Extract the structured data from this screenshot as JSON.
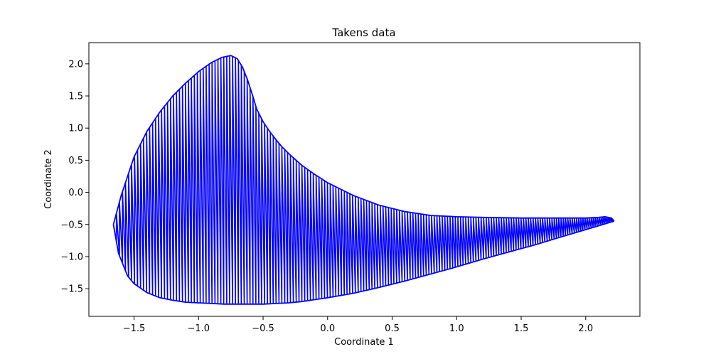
{
  "chart_data": {
    "type": "line",
    "title": "Takens data",
    "xlabel": "Coordinate 1",
    "ylabel": "Coordinate 2",
    "xlim": [
      -1.85,
      2.42
    ],
    "ylim": [
      -1.93,
      2.33
    ],
    "xticks": [
      -1.5,
      -1.0,
      -0.5,
      0.0,
      0.5,
      1.0,
      1.5,
      2.0
    ],
    "xtick_labels": [
      "−1.5",
      "−1.0",
      "−0.5",
      "0.0",
      "0.5",
      "1.0",
      "1.5",
      "2.0"
    ],
    "yticks": [
      -1.5,
      -1.0,
      -0.5,
      0.0,
      0.5,
      1.0,
      1.5,
      2.0
    ],
    "ytick_labels": [
      "−1.5",
      "−1.0",
      "−0.5",
      "0.0",
      "0.5",
      "1.0",
      "1.5",
      "2.0"
    ],
    "grid": false,
    "series": [
      {
        "color": "#0000ff",
        "upper_envelope": {
          "x": [
            -1.66,
            -1.6,
            -1.5,
            -1.4,
            -1.3,
            -1.2,
            -1.1,
            -1.0,
            -0.9,
            -0.82,
            -0.75,
            -0.7,
            -0.66,
            -0.62,
            -0.58,
            -0.55,
            -0.5,
            -0.45,
            -0.4,
            -0.35,
            -0.3,
            -0.2,
            -0.1,
            0.0,
            0.2,
            0.4,
            0.6,
            0.8,
            1.0,
            1.2,
            1.5,
            1.8,
            2.0,
            2.1,
            2.15,
            2.2,
            2.22
          ],
          "y": [
            -0.5,
            -0.05,
            0.55,
            0.95,
            1.25,
            1.5,
            1.7,
            1.88,
            2.02,
            2.1,
            2.13,
            2.08,
            1.95,
            1.75,
            1.5,
            1.3,
            1.1,
            0.95,
            0.82,
            0.7,
            0.6,
            0.42,
            0.28,
            0.15,
            -0.05,
            -0.2,
            -0.3,
            -0.36,
            -0.38,
            -0.39,
            -0.4,
            -0.4,
            -0.4,
            -0.39,
            -0.38,
            -0.4,
            -0.45
          ]
        },
        "lower_envelope": {
          "x": [
            -1.66,
            -1.62,
            -1.55,
            -1.5,
            -1.4,
            -1.3,
            -1.2,
            -1.1,
            -1.0,
            -0.9,
            -0.8,
            -0.7,
            -0.6,
            -0.5,
            -0.4,
            -0.3,
            -0.2,
            -0.1,
            0.0,
            0.2,
            0.4,
            0.6,
            0.8,
            1.0,
            1.2,
            1.4,
            1.6,
            1.8,
            2.0,
            2.1,
            2.15,
            2.2,
            2.22
          ],
          "y": [
            -0.5,
            -0.95,
            -1.3,
            -1.42,
            -1.56,
            -1.64,
            -1.68,
            -1.71,
            -1.72,
            -1.73,
            -1.74,
            -1.74,
            -1.74,
            -1.74,
            -1.73,
            -1.72,
            -1.7,
            -1.67,
            -1.64,
            -1.57,
            -1.48,
            -1.38,
            -1.27,
            -1.16,
            -1.04,
            -0.93,
            -0.82,
            -0.7,
            -0.58,
            -0.52,
            -0.49,
            -0.46,
            -0.45
          ]
        },
        "vertical_lines": 190
      }
    ]
  }
}
